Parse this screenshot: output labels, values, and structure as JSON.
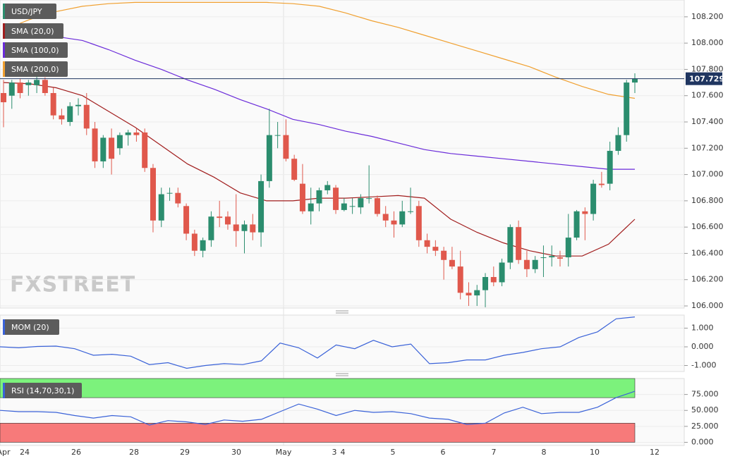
{
  "chart_data": [
    {
      "type": "candlestick",
      "title": "USD/JPY",
      "watermark": "FXSTREET",
      "up_color": "#2b8d6e",
      "down_color": "#e0584c",
      "ohlc": [
        [
          107.62,
          107.72,
          107.36,
          107.55
        ],
        [
          107.6,
          107.72,
          107.5,
          107.7
        ],
        [
          107.7,
          107.73,
          107.58,
          107.62
        ],
        [
          107.68,
          107.72,
          107.6,
          107.7
        ],
        [
          107.68,
          107.75,
          107.62,
          107.72
        ],
        [
          107.72,
          107.74,
          107.6,
          107.62
        ],
        [
          107.62,
          107.66,
          107.42,
          107.45
        ],
        [
          107.45,
          107.5,
          107.38,
          107.42
        ],
        [
          107.4,
          107.55,
          107.37,
          107.52
        ],
        [
          107.52,
          107.58,
          107.45,
          107.53
        ],
        [
          107.53,
          107.62,
          107.3,
          107.35
        ],
        [
          107.35,
          107.4,
          107.05,
          107.1
        ],
        [
          107.1,
          107.3,
          107.05,
          107.28
        ],
        [
          107.28,
          107.35,
          107.0,
          107.12
        ],
        [
          107.2,
          107.32,
          107.15,
          107.3
        ],
        [
          107.3,
          107.34,
          107.22,
          107.32
        ],
        [
          107.32,
          107.35,
          107.25,
          107.3
        ],
        [
          107.32,
          107.35,
          107.02,
          107.05
        ],
        [
          107.05,
          107.08,
          106.56,
          106.65
        ],
        [
          106.65,
          106.9,
          106.6,
          106.85
        ],
        [
          106.86,
          106.9,
          106.8,
          106.86
        ],
        [
          106.86,
          106.9,
          106.75,
          106.78
        ],
        [
          106.76,
          106.78,
          106.5,
          106.55
        ],
        [
          106.55,
          106.58,
          106.38,
          106.42
        ],
        [
          106.42,
          106.52,
          106.37,
          106.5
        ],
        [
          106.5,
          106.72,
          106.45,
          106.68
        ],
        [
          106.68,
          106.8,
          106.6,
          106.67
        ],
        [
          106.68,
          106.72,
          106.58,
          106.62
        ],
        [
          106.62,
          106.85,
          106.45,
          106.57
        ],
        [
          106.57,
          106.65,
          106.4,
          106.62
        ],
        [
          106.62,
          106.7,
          106.5,
          106.56
        ],
        [
          106.56,
          107.0,
          106.45,
          106.95
        ],
        [
          106.95,
          107.5,
          106.9,
          107.3
        ],
        [
          107.3,
          107.4,
          107.2,
          107.3
        ],
        [
          107.3,
          107.42,
          107.1,
          107.12
        ],
        [
          107.12,
          107.15,
          106.95,
          106.96
        ],
        [
          106.93,
          107.08,
          106.7,
          106.72
        ],
        [
          106.72,
          106.9,
          106.62,
          106.78
        ],
        [
          106.78,
          106.9,
          106.72,
          106.88
        ],
        [
          106.88,
          106.95,
          106.85,
          106.92
        ],
        [
          106.9,
          106.92,
          106.7,
          106.73
        ],
        [
          106.73,
          106.82,
          106.72,
          106.78
        ],
        [
          106.76,
          106.82,
          106.7,
          106.76
        ],
        [
          106.75,
          106.85,
          106.7,
          106.82
        ],
        [
          106.82,
          107.07,
          106.78,
          106.82
        ],
        [
          106.82,
          106.84,
          106.68,
          106.7
        ],
        [
          106.7,
          106.76,
          106.6,
          106.65
        ],
        [
          106.65,
          106.72,
          106.52,
          106.62
        ],
        [
          106.62,
          106.8,
          106.6,
          106.72
        ],
        [
          106.72,
          106.9,
          106.7,
          106.72
        ],
        [
          106.76,
          106.8,
          106.45,
          106.5
        ],
        [
          106.5,
          106.55,
          106.4,
          106.45
        ],
        [
          106.45,
          106.5,
          106.38,
          106.42
        ],
        [
          106.42,
          106.45,
          106.2,
          106.35
        ],
        [
          106.35,
          106.45,
          106.28,
          106.3
        ],
        [
          106.3,
          106.42,
          106.05,
          106.1
        ],
        [
          106.1,
          106.18,
          106.0,
          106.08
        ],
        [
          106.08,
          106.16,
          106.0,
          106.12
        ],
        [
          106.12,
          106.25,
          105.99,
          106.22
        ],
        [
          106.22,
          106.3,
          106.15,
          106.18
        ],
        [
          106.18,
          106.36,
          106.15,
          106.33
        ],
        [
          106.33,
          106.62,
          106.28,
          106.6
        ],
        [
          106.6,
          106.65,
          106.32,
          106.35
        ],
        [
          106.35,
          106.42,
          106.22,
          106.28
        ],
        [
          106.28,
          106.38,
          106.25,
          106.35
        ],
        [
          106.37,
          106.46,
          106.22,
          106.37
        ],
        [
          106.37,
          106.46,
          106.3,
          106.38
        ],
        [
          106.37,
          106.42,
          106.3,
          106.36
        ],
        [
          106.37,
          106.7,
          106.3,
          106.52
        ],
        [
          106.52,
          106.73,
          106.5,
          106.72
        ],
        [
          106.72,
          106.75,
          106.5,
          106.7
        ],
        [
          106.7,
          106.96,
          106.65,
          106.93
        ],
        [
          106.93,
          107.02,
          106.9,
          106.92
        ],
        [
          106.93,
          107.25,
          106.88,
          107.18
        ],
        [
          107.18,
          107.36,
          107.15,
          107.3
        ],
        [
          107.3,
          107.72,
          107.25,
          107.7
        ],
        [
          107.7,
          107.77,
          107.62,
          107.729
        ]
      ],
      "series": [
        {
          "name": "SMA (20,0)",
          "color": "#a11d1d",
          "values": [
            107.7,
            107.69,
            107.66,
            107.6,
            107.48,
            107.36,
            107.22,
            107.08,
            106.98,
            106.86,
            106.8,
            106.8,
            106.82,
            106.82,
            106.83,
            106.84,
            106.82,
            106.66,
            106.56,
            106.48,
            106.42,
            106.38,
            106.38,
            106.47,
            106.66
          ]
        },
        {
          "name": "SMA (100,0)",
          "color": "#6a2bd9",
          "values": [
            108.07,
            108.06,
            108.05,
            108.02,
            107.95,
            107.87,
            107.8,
            107.72,
            107.65,
            107.57,
            107.5,
            107.42,
            107.38,
            107.33,
            107.29,
            107.24,
            107.19,
            107.16,
            107.14,
            107.12,
            107.1,
            107.08,
            107.06,
            107.04,
            107.04
          ]
        },
        {
          "name": "SMA (200,0)",
          "color": "#f0a030",
          "values": [
            108.1,
            108.18,
            108.24,
            108.28,
            108.3,
            108.31,
            108.31,
            108.31,
            108.31,
            108.31,
            108.31,
            108.3,
            108.28,
            108.23,
            108.17,
            108.12,
            108.06,
            108.0,
            107.94,
            107.88,
            107.82,
            107.74,
            107.67,
            107.61,
            107.58
          ]
        }
      ],
      "last_price": 107.729,
      "ylim": [
        105.984,
        108.328
      ],
      "yticks": [
        {
          "value": 108.2,
          "label": "108.200"
        },
        {
          "value": 108.0,
          "label": "108.000"
        },
        {
          "value": 107.8,
          "label": "107.800"
        },
        {
          "value": 107.6,
          "label": "107.600"
        },
        {
          "value": 107.4,
          "label": "107.400"
        },
        {
          "value": 107.2,
          "label": "107.200"
        },
        {
          "value": 107.0,
          "label": "107.000"
        },
        {
          "value": 106.8,
          "label": "106.800"
        },
        {
          "value": 106.6,
          "label": "106.600"
        },
        {
          "value": 106.4,
          "label": "106.400"
        },
        {
          "value": 106.2,
          "label": "106.200"
        },
        {
          "value": 106.0,
          "label": "106.000"
        }
      ],
      "x_labels": [
        "Apr",
        "24",
        "26",
        "28",
        "29",
        "30",
        "May",
        "3",
        "4",
        "5",
        "6",
        "7",
        "8",
        "10",
        "12"
      ],
      "grid": true
    },
    {
      "type": "line",
      "title": "MOM (20)",
      "color": "#3a62d8",
      "values": [
        0.0,
        -0.05,
        0.02,
        0.04,
        -0.1,
        -0.45,
        -0.4,
        -0.5,
        -0.95,
        -0.85,
        -1.15,
        -1.0,
        -0.9,
        -0.95,
        -0.75,
        0.2,
        -0.05,
        -0.6,
        0.1,
        -0.1,
        0.35,
        0.0,
        0.15,
        -0.9,
        -0.85,
        -0.7,
        -0.7,
        -0.45,
        -0.3,
        -0.1,
        0.0,
        0.5,
        0.8,
        1.5,
        1.6
      ],
      "ylim": [
        -1.32,
        1.7
      ],
      "yticks": [
        {
          "value": 1,
          "label": "1.000"
        },
        {
          "value": 0,
          "label": "0.000"
        },
        {
          "value": -1,
          "label": "-1.000"
        }
      ]
    },
    {
      "type": "line",
      "title": "RSI (14,70,30,1)",
      "color": "#3a62d8",
      "values": [
        50,
        48,
        48,
        47,
        42,
        38,
        42,
        40,
        27,
        34,
        32,
        28,
        35,
        33,
        36,
        48,
        60,
        52,
        42,
        50,
        47,
        48,
        45,
        38,
        36,
        28,
        30,
        46,
        55,
        45,
        47,
        47,
        55,
        70,
        80
      ],
      "overbought": 70,
      "oversold": 30,
      "overbought_color": "#7cf27c",
      "oversold_color": "#f77a7a",
      "ylim": [
        -5,
        100
      ],
      "yticks": [
        {
          "value": 75,
          "label": "75.000"
        },
        {
          "value": 50,
          "label": "50.000"
        },
        {
          "value": 25,
          "label": "25.000"
        },
        {
          "value": 0,
          "label": "0.000"
        }
      ]
    }
  ]
}
